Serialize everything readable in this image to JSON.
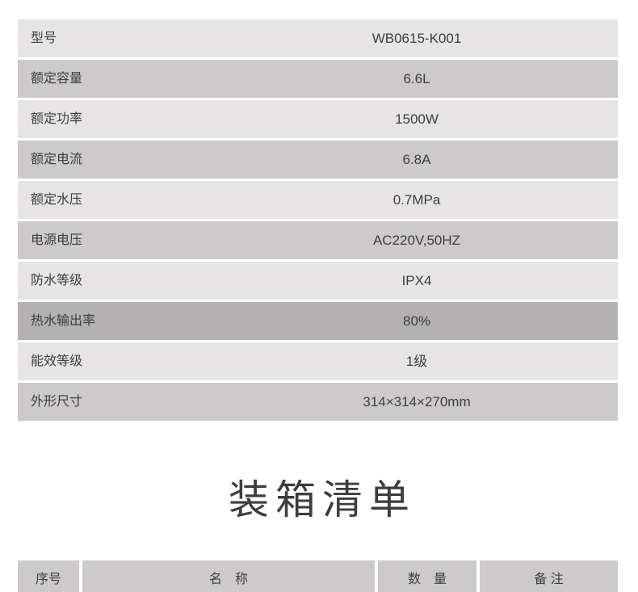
{
  "spec_table": {
    "rows": [
      {
        "label": "型号",
        "value": "WB0615-K001",
        "shade": "light"
      },
      {
        "label": "额定容量",
        "value": "6.6L",
        "shade": "medium"
      },
      {
        "label": "额定功率",
        "value": "1500W",
        "shade": "light"
      },
      {
        "label": "额定电流",
        "value": "6.8A",
        "shade": "medium"
      },
      {
        "label": "额定水压",
        "value": "0.7MPa",
        "shade": "light"
      },
      {
        "label": "电源电压",
        "value": "AC220V,50HZ",
        "shade": "medium"
      },
      {
        "label": "防水等级",
        "value": "IPX4",
        "shade": "light"
      },
      {
        "label": "热水输出率",
        "value": "80%",
        "shade": "dark"
      },
      {
        "label": "能效等级",
        "value": "1级",
        "shade": "light"
      },
      {
        "label": "外形尺寸",
        "value": "314×314×270mm",
        "shade": "medium"
      }
    ]
  },
  "packing_list": {
    "title": "装箱清单",
    "columns": [
      "序号",
      "名　称",
      "数　量",
      "备 注"
    ]
  },
  "colors": {
    "row_light": "#e6e4e5",
    "row_medium": "#cccacb",
    "row_highlight_dark": "#b3b1b2",
    "text": "#3e3e3e",
    "title_text": "#3d3d3d",
    "page_background": "#ffffff"
  }
}
